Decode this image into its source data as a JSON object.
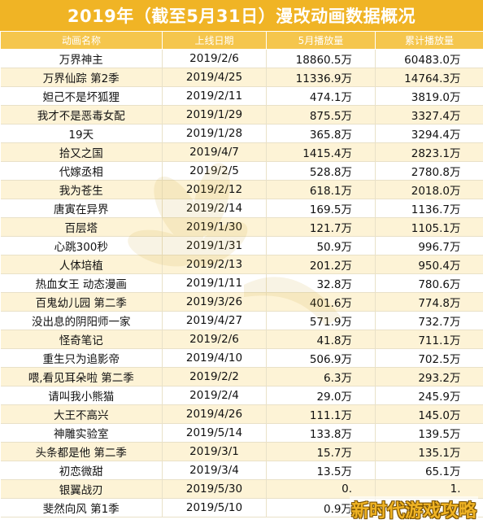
{
  "title": "2019年（截至5月31日）漫改动画数据概况",
  "columns": [
    "动画名称",
    "上线日期",
    "5月播放量",
    "累计播放量"
  ],
  "rows": [
    {
      "name": "万界神主",
      "date": "2019/2/6",
      "may": "18860.5万",
      "total": "60483.0万"
    },
    {
      "name": "万界仙踪 第2季",
      "date": "2019/4/25",
      "may": "11336.9万",
      "total": "14764.3万"
    },
    {
      "name": "妲己不是坏狐狸",
      "date": "2019/2/11",
      "may": "474.1万",
      "total": "3819.0万"
    },
    {
      "name": "我才不是恶毒女配",
      "date": "2019/1/29",
      "may": "875.5万",
      "total": "3327.4万"
    },
    {
      "name": "19天",
      "date": "2019/1/28",
      "may": "365.8万",
      "total": "3294.4万"
    },
    {
      "name": "拾又之国",
      "date": "2019/4/7",
      "may": "1415.4万",
      "total": "2823.1万"
    },
    {
      "name": "代嫁丞相",
      "date": "2019/2/5",
      "may": "528.8万",
      "total": "2780.8万"
    },
    {
      "name": "我为苍生",
      "date": "2019/2/12",
      "may": "618.1万",
      "total": "2018.0万"
    },
    {
      "name": "唐寅在异界",
      "date": "2019/2/14",
      "may": "169.5万",
      "total": "1136.7万"
    },
    {
      "name": "百层塔",
      "date": "2019/1/30",
      "may": "121.7万",
      "total": "1105.1万"
    },
    {
      "name": "心跳300秒",
      "date": "2019/1/31",
      "may": "50.9万",
      "total": "996.7万"
    },
    {
      "name": "人体培植",
      "date": "2019/2/13",
      "may": "201.2万",
      "total": "950.4万"
    },
    {
      "name": "热血女王  动态漫画",
      "date": "2019/1/11",
      "may": "32.8万",
      "total": "780.6万"
    },
    {
      "name": "百鬼幼儿园 第二季",
      "date": "2019/3/26",
      "may": "401.6万",
      "total": "774.8万"
    },
    {
      "name": "没出息的阴阳师一家",
      "date": "2019/4/27",
      "may": "571.9万",
      "total": "732.7万"
    },
    {
      "name": "怪奇笔记",
      "date": "2019/2/6",
      "may": "41.8万",
      "total": "711.1万"
    },
    {
      "name": "重生只为追影帝",
      "date": "2019/4/10",
      "may": "506.9万",
      "total": "702.5万"
    },
    {
      "name": "喂,看见耳朵啦 第二季",
      "date": "2019/2/2",
      "may": "6.3万",
      "total": "293.2万"
    },
    {
      "name": "请叫我小熊猫",
      "date": "2019/2/4",
      "may": "29.0万",
      "total": "245.9万"
    },
    {
      "name": "大王不高兴",
      "date": "2019/4/26",
      "may": "111.1万",
      "total": "145.0万"
    },
    {
      "name": "神雕实验室",
      "date": "2019/5/14",
      "may": "133.8万",
      "total": "139.5万"
    },
    {
      "name": "头条都是他 第二季",
      "date": "2019/3/1",
      "may": "15.7万",
      "total": "135.1万"
    },
    {
      "name": "初恋微甜",
      "date": "2019/3/4",
      "may": "13.5万",
      "total": "65.1万"
    },
    {
      "name": "银翼战刃",
      "date": "2019/5/30",
      "may": "0.",
      "total": "1."
    },
    {
      "name": "斐然向风 第1季",
      "date": "2019/5/10",
      "may": "0.9万",
      "total": "1.0万"
    }
  ],
  "badge": "新时代游戏攻略",
  "colors": {
    "title_bg": "#F0B425",
    "header_bg": "#F5C64D",
    "stripe": "#FDF3D6"
  }
}
